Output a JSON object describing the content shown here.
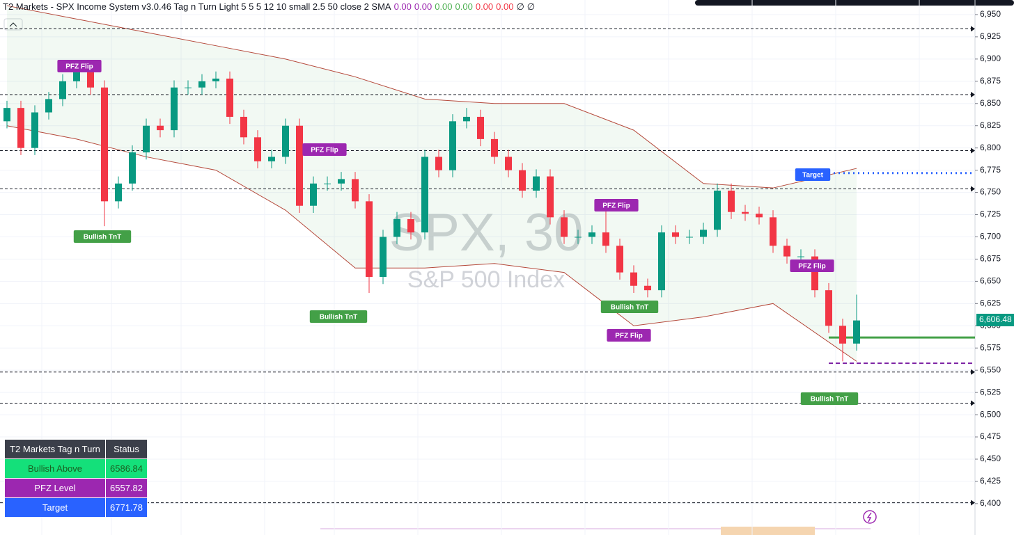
{
  "chart_data": {
    "type": "candlestick",
    "title": "T2 Markets - SPX Income System v3.0.46 Tag n Turn Light 5 5 5 12 10 small 2.5 50 close 2 SMA",
    "indicator_values": [
      "0.00",
      "0.00",
      "0.00",
      "0.00",
      "0.00",
      "0.00",
      "∅",
      "∅"
    ],
    "indicator_colors": [
      "#9c27b0",
      "#9c27b0",
      "#4caf50",
      "#4caf50",
      "#f23645",
      "#f23645",
      "#131722",
      "#131722"
    ],
    "watermark": "SPX, 30",
    "watermark_subtitle": "S&P 500 Index",
    "up_color": "#089981",
    "down_color": "#f23645",
    "ylim": [
      6364.7,
      6966.4
    ],
    "yticks": [
      {
        "value": 6950,
        "label": "6,950"
      },
      {
        "value": 6925,
        "label": "6,925"
      },
      {
        "value": 6900,
        "label": "6,900"
      },
      {
        "value": 6875,
        "label": "6,875"
      },
      {
        "value": 6850,
        "label": "6,850"
      },
      {
        "value": 6825,
        "label": "6,825"
      },
      {
        "value": 6800,
        "label": "6,800"
      },
      {
        "value": 6775,
        "label": "6,775"
      },
      {
        "value": 6750,
        "label": "6,750"
      },
      {
        "value": 6725,
        "label": "6,725"
      },
      {
        "value": 6700,
        "label": "6,700"
      },
      {
        "value": 6675,
        "label": "6,675"
      },
      {
        "value": 6650,
        "label": "6,650"
      },
      {
        "value": 6625,
        "label": "6,625"
      },
      {
        "value": 6600,
        "label": "6,600"
      },
      {
        "value": 6575,
        "label": "6,575"
      },
      {
        "value": 6550,
        "label": "6,550"
      },
      {
        "value": 6525,
        "label": "6,525"
      },
      {
        "value": 6500,
        "label": "6,500"
      },
      {
        "value": 6475,
        "label": "6,475"
      },
      {
        "value": 6450,
        "label": "6,450"
      },
      {
        "value": 6425,
        "label": "6,425"
      },
      {
        "value": 6400,
        "label": "6,400"
      }
    ],
    "open": [
      6830,
      6845,
      6800,
      6840,
      6855,
      6875,
      6885,
      6868,
      6740,
      6760,
      6795,
      6825,
      6820,
      6868,
      6868,
      6875,
      6878,
      6835,
      6812,
      6785,
      6790,
      6825,
      6735,
      6760,
      6760,
      6765,
      6740,
      6655,
      6700,
      6720,
      6705,
      6790,
      6775,
      6830,
      6835,
      6810,
      6790,
      6775,
      6752,
      6768,
      6722,
      6700,
      6700,
      6705,
      6690,
      6660,
      6645,
      6640,
      6705,
      6700,
      6700,
      6708,
      6752,
      6728,
      6726,
      6722,
      6690,
      6678,
      6678,
      6640,
      6600,
      6580
    ],
    "high": [
      6853,
      6853,
      6848,
      6863,
      6883,
      6893,
      6893,
      6876,
      6768,
      6803,
      6833,
      6833,
      6876,
      6876,
      6883,
      6886,
      6886,
      6843,
      6820,
      6798,
      6833,
      6833,
      6768,
      6768,
      6773,
      6773,
      6748,
      6708,
      6728,
      6728,
      6798,
      6798,
      6838,
      6845,
      6843,
      6818,
      6798,
      6783,
      6776,
      6776,
      6730,
      6708,
      6713,
      6730,
      6698,
      6668,
      6653,
      6713,
      6713,
      6708,
      6716,
      6760,
      6760,
      6736,
      6734,
      6730,
      6698,
      6686,
      6686,
      6648,
      6608,
      6635
    ],
    "low": [
      6822,
      6792,
      6792,
      6832,
      6847,
      6867,
      6860,
      6712,
      6732,
      6752,
      6787,
      6812,
      6812,
      6860,
      6860,
      6867,
      6827,
      6804,
      6777,
      6777,
      6782,
      6727,
      6727,
      6752,
      6752,
      6732,
      6637,
      6647,
      6692,
      6697,
      6697,
      6767,
      6767,
      6822,
      6802,
      6782,
      6767,
      6744,
      6744,
      6714,
      6692,
      6692,
      6692,
      6682,
      6652,
      6637,
      6632,
      6632,
      6692,
      6692,
      6692,
      6700,
      6720,
      6718,
      6714,
      6682,
      6670,
      6670,
      6632,
      6592,
      6560,
      6572
    ],
    "close": [
      6845,
      6800,
      6840,
      6855,
      6875,
      6885,
      6868,
      6740,
      6760,
      6795,
      6825,
      6820,
      6868,
      6868,
      6875,
      6878,
      6835,
      6812,
      6785,
      6790,
      6825,
      6735,
      6760,
      6760,
      6765,
      6740,
      6655,
      6700,
      6720,
      6705,
      6790,
      6775,
      6830,
      6835,
      6810,
      6790,
      6775,
      6752,
      6768,
      6722,
      6700,
      6700,
      6705,
      6690,
      6660,
      6645,
      6640,
      6705,
      6700,
      6700,
      6708,
      6752,
      6728,
      6726,
      6722,
      6690,
      6678,
      6678,
      6640,
      6600,
      6580,
      6606
    ],
    "band_x": [
      0,
      5,
      10,
      15,
      20,
      25,
      30,
      35,
      40,
      45,
      50,
      55,
      61
    ],
    "band_upper": [
      6960,
      6945,
      6930,
      6915,
      6900,
      6880,
      6855,
      6850,
      6850,
      6820,
      6760,
      6755,
      6777
    ],
    "band_lower": [
      6825,
      6810,
      6790,
      6775,
      6730,
      6665,
      6665,
      6670,
      6660,
      6600,
      6610,
      6625,
      6560
    ],
    "levels": [
      6934,
      6860,
      6797,
      6754,
      6548,
      6513,
      6401
    ],
    "last_price": {
      "value": 6606.48,
      "label": "6,606.48"
    },
    "annotations": [
      "PFZ Flip",
      "PFZ Flip",
      "Bullish TnT",
      "Bullish TnT",
      "PFZ Flip",
      "Bullish TnT",
      "PFZ Flip",
      "PFZ Flip",
      "Bullish TnT",
      "Target"
    ],
    "annotation_colors": [
      "#9c27b0",
      "#9c27b0",
      "#43a047",
      "#43a047",
      "#9c27b0",
      "#43a047",
      "#9c27b0",
      "#9c27b0",
      "#43a047",
      "#2962ff"
    ]
  },
  "table": {
    "header": [
      "T2 Markets Tag n Turn",
      "Status"
    ],
    "rows": [
      [
        "Bullish Above",
        6586.84
      ],
      [
        "PFZ Level",
        6557.82
      ],
      [
        "Target",
        6771.78
      ]
    ]
  }
}
